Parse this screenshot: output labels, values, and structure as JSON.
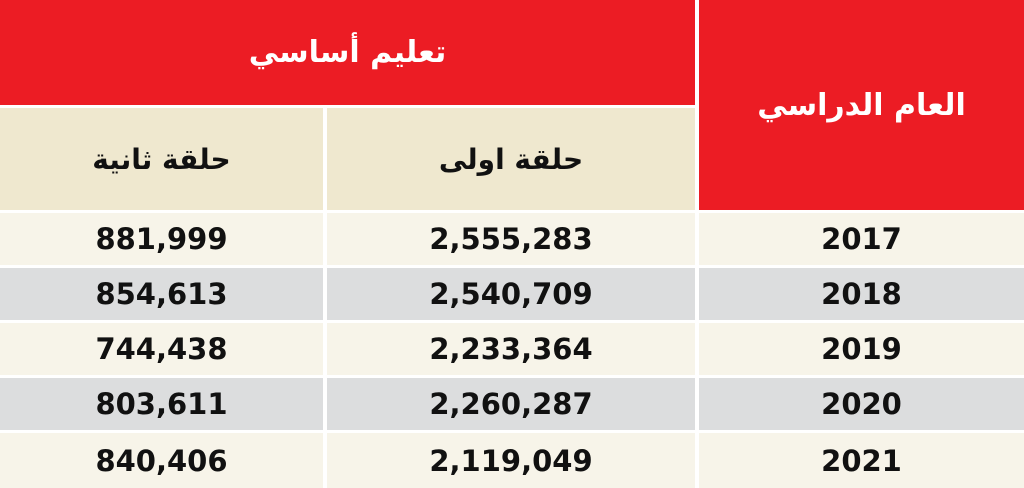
{
  "header": {
    "group_label": "تعليم أساسي",
    "year_label": "العام الدراسي",
    "columns": [
      "حلقة اولى",
      "حلقة ثانية"
    ]
  },
  "table": {
    "rows": [
      [
        "2017",
        "2,555,283",
        "881,999"
      ],
      [
        "2018",
        "2,540,709",
        "854,613"
      ],
      [
        "2019",
        "2,233,364",
        "744,438"
      ],
      [
        "2020",
        "2,260,287",
        "803,611"
      ],
      [
        "2021",
        "2,119,049",
        "840,406"
      ]
    ]
  }
}
